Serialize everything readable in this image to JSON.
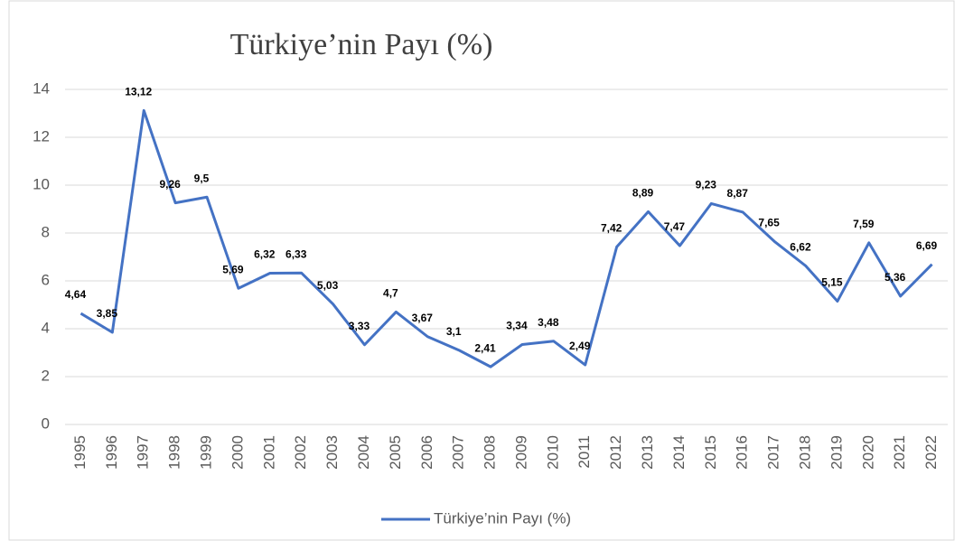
{
  "chart_data": {
    "type": "line",
    "title": "Türkiye’nin Payı (%)",
    "categories": [
      "1995",
      "1996",
      "1997",
      "1998",
      "1999",
      "2000",
      "2001",
      "2002",
      "2003",
      "2004",
      "2005",
      "2006",
      "2007",
      "2008",
      "2009",
      "2010",
      "2011",
      "2012",
      "2013",
      "2014",
      "2015",
      "2016",
      "2017",
      "2018",
      "2019",
      "2020",
      "2021",
      "2022"
    ],
    "series": [
      {
        "name": "Türkiye’nin Payı (%)",
        "color": "#4472c4",
        "values": [
          4.64,
          3.85,
          13.12,
          9.26,
          9.5,
          5.69,
          6.32,
          6.33,
          5.03,
          3.33,
          4.7,
          3.67,
          3.1,
          2.41,
          3.34,
          3.48,
          2.49,
          7.42,
          8.89,
          7.47,
          9.23,
          8.87,
          7.65,
          6.62,
          5.15,
          7.59,
          5.36,
          6.69
        ],
        "value_labels": [
          "4,64",
          "3,85",
          "13,12",
          "9,26",
          "9,5",
          "5,69",
          "6,32",
          "6,33",
          "5,03",
          "3,33",
          "4,7",
          "3,67",
          "3,1",
          "2,41",
          "3,34",
          "3,48",
          "2,49",
          "7,42",
          "8,89",
          "7,47",
          "9,23",
          "8,87",
          "7,65",
          "6,62",
          "5,15",
          "7,59",
          "5,36",
          "6,69"
        ]
      }
    ],
    "ylim": [
      0,
      14
    ],
    "yticks": [
      0,
      2,
      4,
      6,
      8,
      10,
      12,
      14
    ],
    "grid": true,
    "legend": "bottom"
  }
}
